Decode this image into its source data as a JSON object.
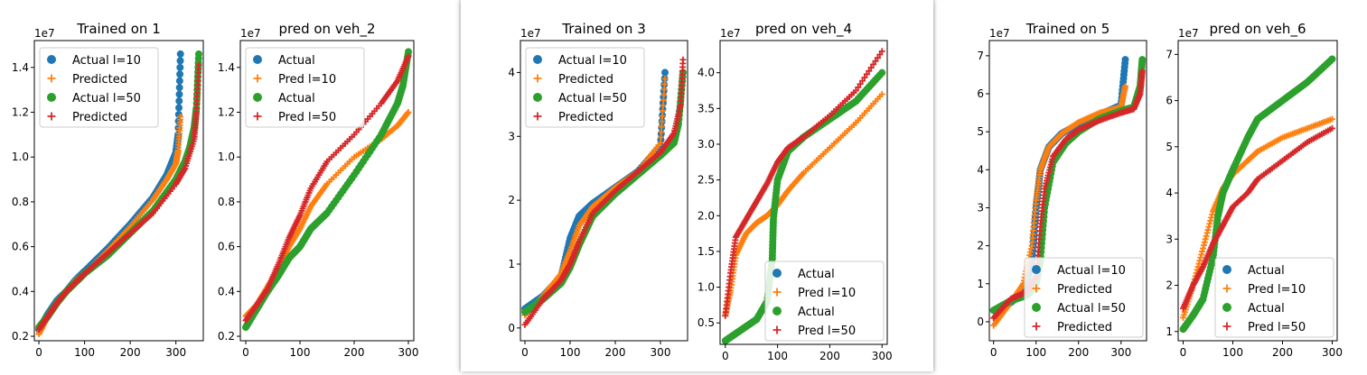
{
  "colors": {
    "blue": "#1f77b4",
    "orange": "#ff7f0e",
    "green": "#2ca02c",
    "red": "#d62728"
  },
  "chart_data": [
    {
      "type": "scatter",
      "title": "Trained on 1",
      "offset_text": "1e7",
      "xlim": [
        -10,
        360
      ],
      "ylim": [
        0.18,
        1.52
      ],
      "xticks": [
        0,
        100,
        200,
        300
      ],
      "yticks": [
        0.2,
        0.4,
        0.6,
        0.8,
        1.0,
        1.2,
        1.4
      ],
      "xtick_labels": [
        "0",
        "100",
        "200",
        "300"
      ],
      "ytick_labels": [
        "0.2",
        "0.4",
        "0.6",
        "0.8",
        "1.0",
        "1.2",
        "1.4"
      ],
      "legend": {
        "position": "upper-left",
        "entries": [
          {
            "label": "Actual l=10",
            "marker": "dot",
            "color": "#1f77b4"
          },
          {
            "label": "Predicted",
            "marker": "plus",
            "color": "#ff7f0e"
          },
          {
            "label": "Actual l=50",
            "marker": "dot",
            "color": "#2ca02c"
          },
          {
            "label": "Predicted",
            "marker": "plus",
            "color": "#d62728"
          }
        ]
      },
      "series": [
        {
          "marker": "dot",
          "color": "#1f77b4",
          "x": [
            0,
            20,
            40,
            60,
            80,
            100,
            150,
            200,
            250,
            280,
            300,
            305,
            310
          ],
          "y": [
            0.23,
            0.3,
            0.36,
            0.4,
            0.45,
            0.49,
            0.59,
            0.7,
            0.82,
            0.92,
            1.02,
            1.1,
            1.46
          ]
        },
        {
          "marker": "plus",
          "color": "#ff7f0e",
          "x": [
            0,
            20,
            40,
            60,
            80,
            100,
            150,
            200,
            250,
            280,
            300,
            305,
            310
          ],
          "y": [
            0.21,
            0.29,
            0.35,
            0.4,
            0.45,
            0.48,
            0.58,
            0.69,
            0.81,
            0.9,
            0.97,
            1.03,
            1.18
          ]
        },
        {
          "marker": "dot",
          "color": "#2ca02c",
          "x": [
            0,
            20,
            40,
            60,
            80,
            100,
            150,
            200,
            250,
            300,
            320,
            330,
            340,
            345,
            350
          ],
          "y": [
            0.24,
            0.29,
            0.35,
            0.4,
            0.44,
            0.48,
            0.56,
            0.66,
            0.76,
            0.9,
            0.98,
            1.04,
            1.13,
            1.22,
            1.46
          ]
        },
        {
          "marker": "plus",
          "color": "#d62728",
          "x": [
            0,
            20,
            40,
            60,
            80,
            100,
            150,
            200,
            250,
            300,
            320,
            340,
            345,
            350
          ],
          "y": [
            0.23,
            0.29,
            0.35,
            0.4,
            0.44,
            0.48,
            0.57,
            0.66,
            0.75,
            0.88,
            0.95,
            1.08,
            1.2,
            1.41
          ]
        }
      ]
    },
    {
      "type": "scatter",
      "title": "pred on veh_2",
      "offset_text": "1e7",
      "xlim": [
        -10,
        310
      ],
      "ylim": [
        0.18,
        1.52
      ],
      "xticks": [
        0,
        100,
        200,
        300
      ],
      "yticks": [
        0.2,
        0.4,
        0.6,
        0.8,
        1.0,
        1.2,
        1.4
      ],
      "xtick_labels": [
        "0",
        "100",
        "200",
        "300"
      ],
      "ytick_labels": [
        "0.2",
        "0.4",
        "0.6",
        "0.8",
        "1.0",
        "1.2",
        "1.4"
      ],
      "legend": {
        "position": "upper-left",
        "entries": [
          {
            "label": "Actual",
            "marker": "dot",
            "color": "#1f77b4"
          },
          {
            "label": "Pred l=10",
            "marker": "plus",
            "color": "#ff7f0e"
          },
          {
            "label": "Actual",
            "marker": "dot",
            "color": "#2ca02c"
          },
          {
            "label": "Pred l=50",
            "marker": "plus",
            "color": "#d62728"
          }
        ]
      },
      "series": [
        {
          "marker": "plus",
          "color": "#ff7f0e",
          "x": [
            0,
            20,
            40,
            60,
            80,
            100,
            120,
            150,
            200,
            250,
            280,
            300
          ],
          "y": [
            0.29,
            0.34,
            0.42,
            0.5,
            0.6,
            0.68,
            0.78,
            0.88,
            1.0,
            1.08,
            1.14,
            1.2
          ]
        },
        {
          "marker": "dot",
          "color": "#2ca02c",
          "x": [
            0,
            20,
            40,
            60,
            80,
            100,
            120,
            150,
            200,
            250,
            280,
            290,
            300
          ],
          "y": [
            0.24,
            0.32,
            0.4,
            0.47,
            0.55,
            0.6,
            0.68,
            0.75,
            0.92,
            1.1,
            1.24,
            1.32,
            1.47
          ]
        },
        {
          "marker": "plus",
          "color": "#d62728",
          "x": [
            0,
            20,
            40,
            60,
            80,
            100,
            120,
            150,
            200,
            250,
            280,
            300
          ],
          "y": [
            0.27,
            0.34,
            0.41,
            0.52,
            0.64,
            0.74,
            0.86,
            0.98,
            1.1,
            1.24,
            1.34,
            1.45
          ]
        }
      ]
    },
    {
      "type": "scatter",
      "title": "Trained on 3",
      "offset_text": "1e7",
      "xlim": [
        -10,
        360
      ],
      "ylim": [
        -0.2,
        4.5
      ],
      "xticks": [
        0,
        100,
        200,
        300
      ],
      "yticks": [
        0,
        1,
        2,
        3,
        4
      ],
      "xtick_labels": [
        "0",
        "100",
        "200",
        "300"
      ],
      "ytick_labels": [
        "0",
        "1",
        "2",
        "3",
        "4"
      ],
      "legend": {
        "position": "upper-left",
        "entries": [
          {
            "label": "Actual l=10",
            "marker": "dot",
            "color": "#1f77b4"
          },
          {
            "label": "Predicted",
            "marker": "plus",
            "color": "#ff7f0e"
          },
          {
            "label": "Actual l=50",
            "marker": "dot",
            "color": "#2ca02c"
          },
          {
            "label": "Predicted",
            "marker": "plus",
            "color": "#d62728"
          }
        ]
      },
      "series": [
        {
          "marker": "dot",
          "color": "#1f77b4",
          "x": [
            0,
            40,
            80,
            100,
            120,
            150,
            200,
            250,
            300,
            310
          ],
          "y": [
            0.3,
            0.5,
            0.8,
            1.4,
            1.75,
            1.95,
            2.2,
            2.45,
            2.85,
            4.0
          ]
        },
        {
          "marker": "plus",
          "color": "#ff7f0e",
          "x": [
            0,
            40,
            80,
            100,
            120,
            150,
            200,
            250,
            300,
            310
          ],
          "y": [
            0.2,
            0.5,
            0.85,
            1.2,
            1.6,
            1.9,
            2.2,
            2.45,
            2.9,
            3.9
          ]
        },
        {
          "marker": "dot",
          "color": "#2ca02c",
          "x": [
            0,
            40,
            80,
            100,
            120,
            150,
            200,
            250,
            300,
            330,
            340,
            350
          ],
          "y": [
            0.25,
            0.45,
            0.7,
            0.95,
            1.3,
            1.75,
            2.1,
            2.4,
            2.7,
            2.9,
            3.2,
            4.0
          ]
        },
        {
          "marker": "plus",
          "color": "#d62728",
          "x": [
            0,
            40,
            80,
            100,
            120,
            150,
            200,
            250,
            300,
            330,
            345,
            350
          ],
          "y": [
            0.05,
            0.45,
            0.75,
            1.0,
            1.35,
            1.8,
            2.15,
            2.45,
            2.75,
            3.05,
            3.5,
            4.2
          ]
        }
      ]
    },
    {
      "type": "scatter",
      "title": "pred on veh_4",
      "offset_text": "1e7",
      "xlim": [
        -10,
        310
      ],
      "ylim": [
        0.2,
        4.45
      ],
      "xticks": [
        0,
        100,
        200,
        300
      ],
      "yticks": [
        0.5,
        1.0,
        1.5,
        2.0,
        2.5,
        3.0,
        3.5,
        4.0
      ],
      "xtick_labels": [
        "0",
        "100",
        "200",
        "300"
      ],
      "ytick_labels": [
        "0.5",
        "1.0",
        "1.5",
        "2.0",
        "2.5",
        "3.0",
        "3.5",
        "4.0"
      ],
      "legend": {
        "position": "lower-right",
        "entries": [
          {
            "label": "Actual",
            "marker": "dot",
            "color": "#1f77b4"
          },
          {
            "label": "Pred l=10",
            "marker": "plus",
            "color": "#ff7f0e"
          },
          {
            "label": "Actual",
            "marker": "dot",
            "color": "#2ca02c"
          },
          {
            "label": "Pred l=50",
            "marker": "plus",
            "color": "#d62728"
          }
        ]
      },
      "series": [
        {
          "marker": "plus",
          "color": "#ff7f0e",
          "x": [
            0,
            10,
            20,
            40,
            60,
            80,
            100,
            120,
            150,
            200,
            250,
            300
          ],
          "y": [
            0.6,
            0.95,
            1.45,
            1.75,
            1.9,
            2.0,
            2.15,
            2.35,
            2.6,
            2.95,
            3.3,
            3.7
          ]
        },
        {
          "marker": "dot",
          "color": "#2ca02c",
          "x": [
            0,
            20,
            40,
            60,
            80,
            90,
            92,
            100,
            120,
            150,
            200,
            250,
            300
          ],
          "y": [
            0.25,
            0.35,
            0.45,
            0.55,
            0.8,
            1.4,
            1.95,
            2.5,
            2.9,
            3.1,
            3.35,
            3.6,
            4.0
          ]
        },
        {
          "marker": "plus",
          "color": "#d62728",
          "x": [
            0,
            10,
            20,
            40,
            60,
            80,
            100,
            120,
            150,
            200,
            250,
            300
          ],
          "y": [
            0.6,
            1.2,
            1.7,
            1.95,
            2.2,
            2.45,
            2.75,
            2.95,
            3.1,
            3.4,
            3.75,
            4.3
          ]
        }
      ]
    },
    {
      "type": "scatter",
      "title": "Trained on 5",
      "offset_text": "1e7",
      "xlim": [
        -10,
        360
      ],
      "ylim": [
        -0.5,
        7.4
      ],
      "xticks": [
        0,
        100,
        200,
        300
      ],
      "yticks": [
        0,
        1,
        2,
        3,
        4,
        5,
        6,
        7
      ],
      "xtick_labels": [
        "0",
        "100",
        "200",
        "300"
      ],
      "ytick_labels": [
        "0",
        "1",
        "2",
        "3",
        "4",
        "5",
        "6",
        "7"
      ],
      "legend": {
        "position": "lower-right",
        "entries": [
          {
            "label": "Actual l=10",
            "marker": "dot",
            "color": "#1f77b4"
          },
          {
            "label": "Predicted",
            "marker": "plus",
            "color": "#ff7f0e"
          },
          {
            "label": "Actual l=50",
            "marker": "dot",
            "color": "#2ca02c"
          },
          {
            "label": "Predicted",
            "marker": "plus",
            "color": "#d62728"
          }
        ]
      },
      "series": [
        {
          "marker": "dot",
          "color": "#1f77b4",
          "x": [
            0,
            40,
            70,
            90,
            100,
            110,
            130,
            160,
            200,
            250,
            300,
            310
          ],
          "y": [
            0.3,
            0.5,
            0.8,
            1.5,
            3.0,
            4.0,
            4.6,
            4.95,
            5.2,
            5.45,
            5.7,
            6.9
          ]
        },
        {
          "marker": "plus",
          "color": "#ff7f0e",
          "x": [
            0,
            40,
            70,
            90,
            100,
            110,
            130,
            160,
            200,
            250,
            300,
            310
          ],
          "y": [
            -0.1,
            0.5,
            1.0,
            2.0,
            3.2,
            4.0,
            4.6,
            4.95,
            5.25,
            5.5,
            5.65,
            6.2
          ]
        },
        {
          "marker": "dot",
          "color": "#2ca02c",
          "x": [
            0,
            40,
            80,
            100,
            110,
            120,
            140,
            170,
            200,
            250,
            300,
            330,
            345,
            350
          ],
          "y": [
            0.3,
            0.55,
            0.7,
            1.0,
            1.6,
            3.0,
            4.2,
            4.7,
            5.0,
            5.35,
            5.55,
            5.65,
            6.2,
            6.9
          ]
        },
        {
          "marker": "plus",
          "color": "#d62728",
          "x": [
            0,
            40,
            80,
            100,
            110,
            120,
            140,
            170,
            200,
            250,
            300,
            330,
            345,
            350
          ],
          "y": [
            0.1,
            0.6,
            0.8,
            1.2,
            2.5,
            3.5,
            4.35,
            4.8,
            5.05,
            5.3,
            5.5,
            5.6,
            6.0,
            6.6
          ]
        }
      ]
    },
    {
      "type": "scatter",
      "title": "pred on veh_6",
      "offset_text": "1e7",
      "xlim": [
        -10,
        310
      ],
      "ylim": [
        0.8,
        7.3
      ],
      "xticks": [
        0,
        100,
        200,
        300
      ],
      "yticks": [
        1,
        2,
        3,
        4,
        5,
        6,
        7
      ],
      "xtick_labels": [
        "0",
        "100",
        "200",
        "300"
      ],
      "ytick_labels": [
        "1",
        "2",
        "3",
        "4",
        "5",
        "6",
        "7"
      ],
      "legend": {
        "position": "lower-right",
        "entries": [
          {
            "label": "Actual",
            "marker": "dot",
            "color": "#1f77b4"
          },
          {
            "label": "Pred l=10",
            "marker": "plus",
            "color": "#ff7f0e"
          },
          {
            "label": "Actual",
            "marker": "dot",
            "color": "#2ca02c"
          },
          {
            "label": "Pred l=50",
            "marker": "plus",
            "color": "#d62728"
          }
        ]
      },
      "series": [
        {
          "marker": "plus",
          "color": "#ff7f0e",
          "x": [
            0,
            20,
            40,
            60,
            80,
            100,
            130,
            150,
            200,
            250,
            300
          ],
          "y": [
            1.3,
            2.0,
            2.8,
            3.6,
            4.1,
            4.4,
            4.7,
            4.9,
            5.2,
            5.4,
            5.6
          ]
        },
        {
          "marker": "dot",
          "color": "#2ca02c",
          "x": [
            0,
            20,
            40,
            60,
            70,
            80,
            100,
            130,
            150,
            200,
            250,
            300
          ],
          "y": [
            1.05,
            1.35,
            1.7,
            2.6,
            3.5,
            4.0,
            4.5,
            5.2,
            5.6,
            6.0,
            6.4,
            6.9
          ]
        },
        {
          "marker": "plus",
          "color": "#d62728",
          "x": [
            0,
            20,
            40,
            60,
            80,
            100,
            130,
            150,
            200,
            250,
            300
          ],
          "y": [
            1.5,
            2.0,
            2.4,
            2.9,
            3.3,
            3.7,
            4.0,
            4.3,
            4.7,
            5.1,
            5.4
          ]
        }
      ]
    }
  ]
}
